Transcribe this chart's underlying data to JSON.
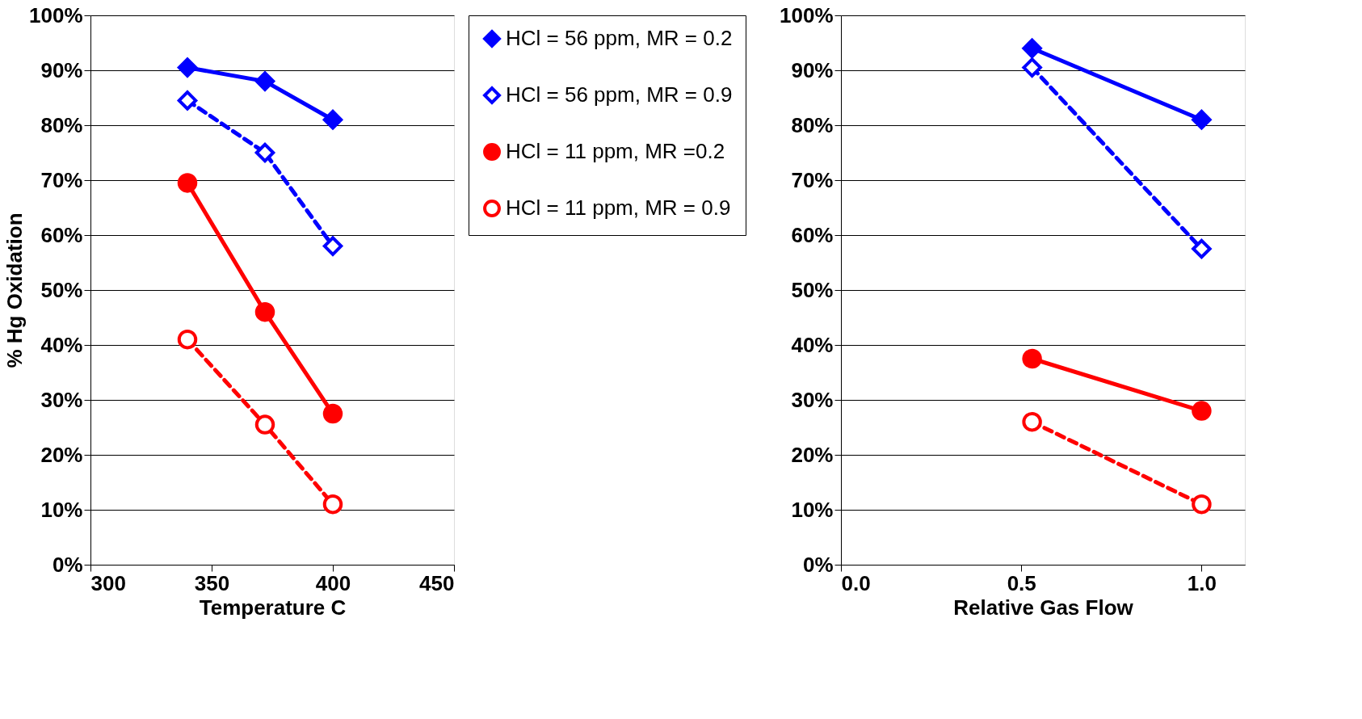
{
  "chart_data": [
    {
      "type": "line",
      "xlabel": "Temperature C",
      "ylabel": "% Hg Oxidation",
      "x": [
        340,
        372,
        400
      ],
      "xlim": [
        300,
        450
      ],
      "xticks": [
        300,
        350,
        400,
        450
      ],
      "ylim": [
        0,
        100
      ],
      "yticks": [
        {
          "value": 0,
          "label": "0%"
        },
        {
          "value": 10,
          "label": "10%"
        },
        {
          "value": 20,
          "label": "20%"
        },
        {
          "value": 30,
          "label": "30%"
        },
        {
          "value": 40,
          "label": "40%"
        },
        {
          "value": 50,
          "label": "50%"
        },
        {
          "value": 60,
          "label": "60%"
        },
        {
          "value": 70,
          "label": "70%"
        },
        {
          "value": 80,
          "label": "80%"
        },
        {
          "value": 90,
          "label": "90%"
        },
        {
          "value": 100,
          "label": "100%"
        }
      ],
      "grid": "y",
      "legend": "right",
      "series": [
        {
          "name": "HCl = 56 ppm, MR = 0.2",
          "color": "#0000ff",
          "marker": "diamond",
          "line_style": "solid",
          "values": [
            90.5,
            88,
            81
          ]
        },
        {
          "name": "HCl = 56 ppm, MR = 0.9",
          "color": "#0000ff",
          "marker": "diamond",
          "line_style": "dashed",
          "values": [
            84.5,
            75,
            58
          ]
        },
        {
          "name": "HCl = 11 ppm, MR =0.2",
          "color": "#ff0000",
          "marker": "circle",
          "line_style": "solid",
          "values": [
            69.5,
            46,
            27.5
          ]
        },
        {
          "name": "HCl = 11 ppm, MR = 0.9",
          "color": "#ff0000",
          "marker": "circle",
          "line_style": "dashed",
          "values": [
            41,
            25.5,
            11
          ]
        }
      ]
    },
    {
      "type": "line",
      "xlabel": "Relative Gas Flow",
      "x": [
        0.53,
        1.0
      ],
      "xlim": [
        0,
        1.12
      ],
      "xticks": [
        {
          "value": 0,
          "label": "0.0"
        },
        {
          "value": 0.5,
          "label": "0.5"
        },
        {
          "value": 1,
          "label": "1.0"
        }
      ],
      "ylim": [
        0,
        100
      ],
      "yticks": [
        {
          "value": 0,
          "label": "0%"
        },
        {
          "value": 10,
          "label": "10%"
        },
        {
          "value": 20,
          "label": "20%"
        },
        {
          "value": 30,
          "label": "30%"
        },
        {
          "value": 40,
          "label": "40%"
        },
        {
          "value": 50,
          "label": "50%"
        },
        {
          "value": 60,
          "label": "60%"
        },
        {
          "value": 70,
          "label": "70%"
        },
        {
          "value": 80,
          "label": "80%"
        },
        {
          "value": 90,
          "label": "90%"
        },
        {
          "value": 100,
          "label": "100%"
        }
      ],
      "grid": "y",
      "legend": false,
      "series": [
        {
          "color": "#0000ff",
          "marker": "diamond",
          "line_style": "solid",
          "values": [
            94,
            81
          ]
        },
        {
          "color": "#0000ff",
          "marker": "diamond",
          "line_style": "dashed",
          "values": [
            90.5,
            57.5
          ]
        },
        {
          "color": "#ff0000",
          "marker": "circle",
          "line_style": "solid",
          "values": [
            37.5,
            28
          ]
        },
        {
          "color": "#ff0000",
          "marker": "circle",
          "line_style": "dashed",
          "values": [
            26,
            11
          ]
        }
      ]
    }
  ]
}
